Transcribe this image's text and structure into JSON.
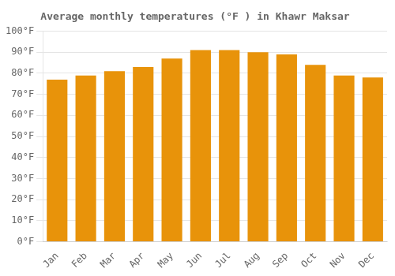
{
  "chart_data": {
    "type": "bar",
    "title": "Average monthly temperatures (°F ) in Khawr Maksar",
    "categories": [
      "Jan",
      "Feb",
      "Mar",
      "Apr",
      "May",
      "Jun",
      "Jul",
      "Aug",
      "Sep",
      "Oct",
      "Nov",
      "Dec"
    ],
    "values": [
      77,
      79,
      81,
      83,
      87,
      91,
      91,
      90,
      89,
      84,
      79,
      78
    ],
    "color": "#E8930A",
    "ylim": [
      0,
      100
    ],
    "yticks": [
      {
        "value": 0,
        "label": "0°F"
      },
      {
        "value": 10,
        "label": "10°F"
      },
      {
        "value": 20,
        "label": "20°F"
      },
      {
        "value": 30,
        "label": "30°F"
      },
      {
        "value": 40,
        "label": "40°F"
      },
      {
        "value": 50,
        "label": "50°F"
      },
      {
        "value": 60,
        "label": "60°F"
      },
      {
        "value": 70,
        "label": "70°F"
      },
      {
        "value": 80,
        "label": "80°F"
      },
      {
        "value": 90,
        "label": "90°F"
      },
      {
        "value": 100,
        "label": "100°F"
      }
    ],
    "grid": true
  }
}
